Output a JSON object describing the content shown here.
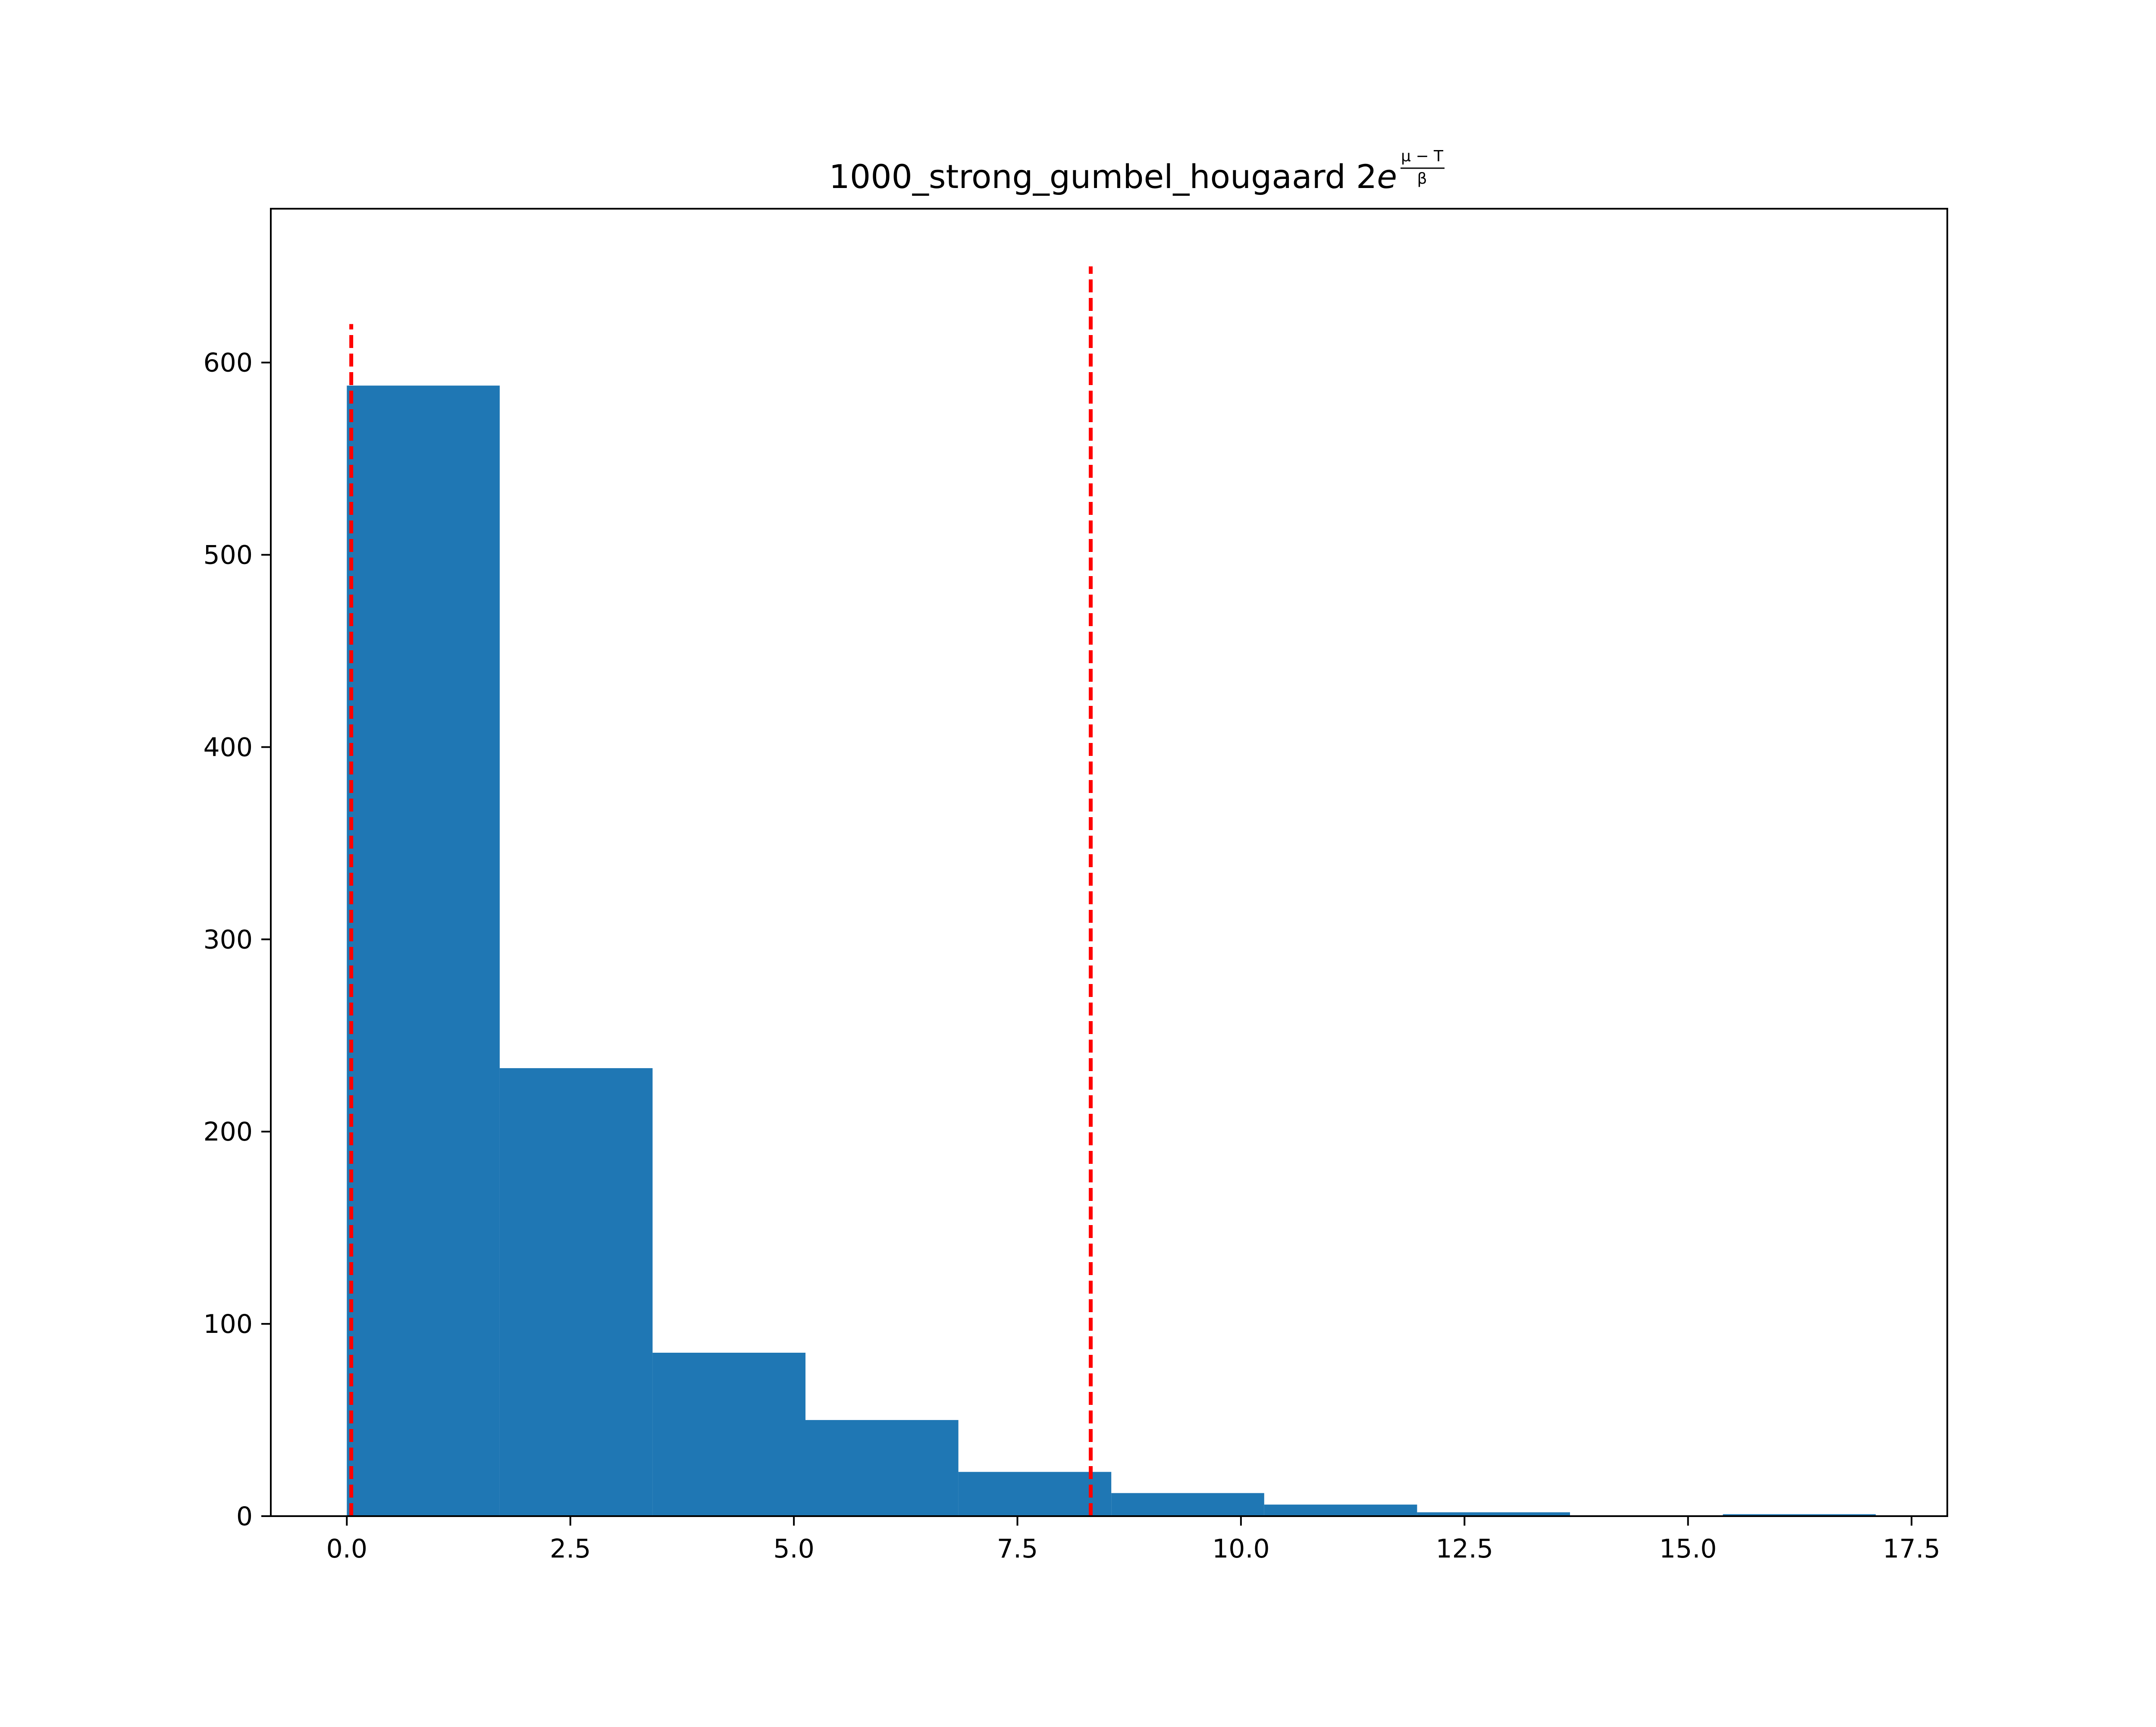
{
  "chart_data": {
    "type": "bar",
    "title": "1000_strong_gumbel_hougaard 2e",
    "title_exponent": {
      "numerator": "μ − T",
      "denominator": "β"
    },
    "xlabel": "",
    "ylabel": "",
    "xlim": [
      -0.85,
      17.9
    ],
    "ylim": [
      0,
      680
    ],
    "x_ticks": [
      {
        "value": 0.0,
        "label": "0.0"
      },
      {
        "value": 2.5,
        "label": "2.5"
      },
      {
        "value": 5.0,
        "label": "5.0"
      },
      {
        "value": 7.5,
        "label": "7.5"
      },
      {
        "value": 10.0,
        "label": "10.0"
      },
      {
        "value": 12.5,
        "label": "12.5"
      },
      {
        "value": 15.0,
        "label": "15.0"
      },
      {
        "value": 17.5,
        "label": "17.5"
      }
    ],
    "y_ticks": [
      {
        "value": 0,
        "label": "0"
      },
      {
        "value": 100,
        "label": "100"
      },
      {
        "value": 200,
        "label": "200"
      },
      {
        "value": 300,
        "label": "300"
      },
      {
        "value": 400,
        "label": "400"
      },
      {
        "value": 500,
        "label": "500"
      },
      {
        "value": 600,
        "label": "600"
      }
    ],
    "bins": [
      {
        "x0": 0.0,
        "x1": 1.71,
        "count": 588
      },
      {
        "x0": 1.71,
        "x1": 3.42,
        "count": 233
      },
      {
        "x0": 3.42,
        "x1": 5.13,
        "count": 85
      },
      {
        "x0": 5.13,
        "x1": 6.84,
        "count": 50
      },
      {
        "x0": 6.84,
        "x1": 8.55,
        "count": 23
      },
      {
        "x0": 8.55,
        "x1": 10.26,
        "count": 12
      },
      {
        "x0": 10.26,
        "x1": 11.97,
        "count": 6
      },
      {
        "x0": 11.97,
        "x1": 13.68,
        "count": 2
      },
      {
        "x0": 13.68,
        "x1": 15.39,
        "count": 0
      },
      {
        "x0": 15.39,
        "x1": 17.1,
        "count": 1
      }
    ],
    "reference_lines": [
      {
        "x": 0.05,
        "y_top": 620,
        "style": "dashed"
      },
      {
        "x": 8.32,
        "y_top": 650,
        "style": "dashed"
      }
    ],
    "grid": false,
    "legend": "none",
    "colors": {
      "bar": "#1f77b4",
      "reference_line": "#ff0000",
      "axes": "#000000",
      "background": "#ffffff"
    }
  }
}
